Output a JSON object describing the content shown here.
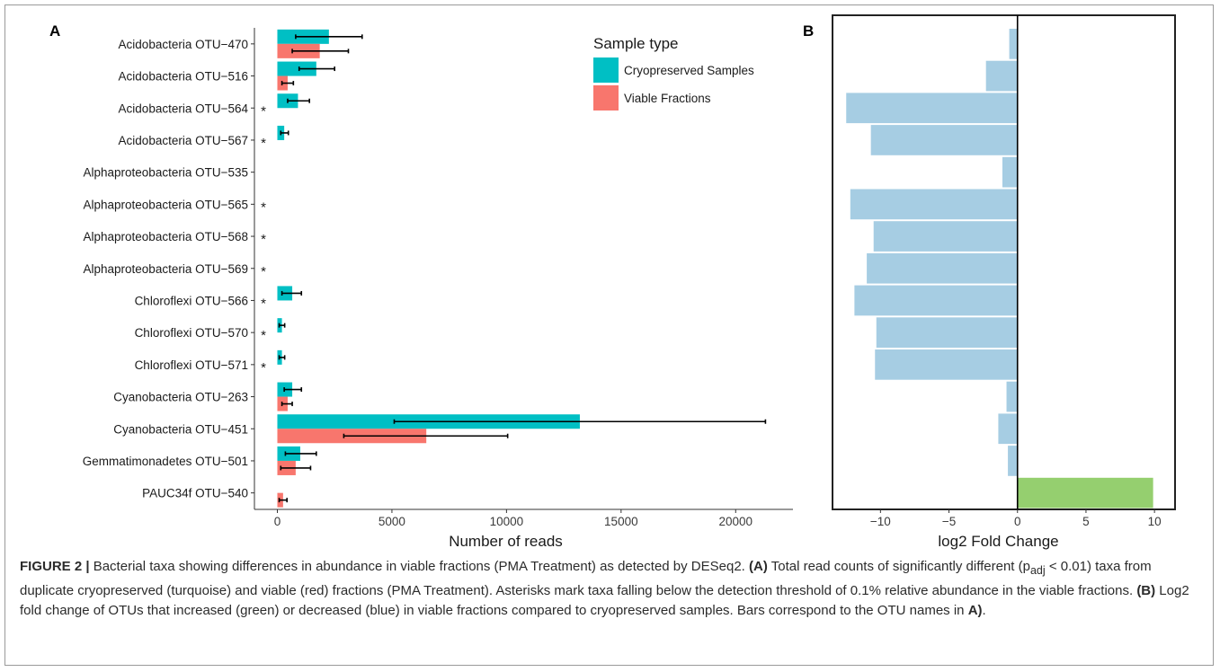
{
  "figure": {
    "caption": {
      "label": "FIGURE 2 |",
      "p1": " Bacterial taxa showing differences in abundance in viable fractions (PMA Treatment) as detected by DESeq2. ",
      "a_ref": "(A)",
      "p2": " Total read counts of significantly different (p",
      "p_sub": "adj",
      "p3": " < 0.01) taxa from duplicate cryopreserved (turquoise) and viable (red) fractions (PMA Treatment). Asterisks mark taxa falling below the detection threshold of 0.1% relative abundance in the viable fractions. ",
      "b_ref": "(B)",
      "p4": " Log2 fold change of OTUs that increased (green) or decreased (blue) in viable fractions compared to cryopreserved samples. Bars correspond to the OTU names in ",
      "a_end": "A)",
      "p5": "."
    }
  },
  "chart_data": [
    {
      "panel": "A",
      "type": "bar",
      "orientation": "horizontal",
      "categories": [
        "Acidobacteria OTU−470",
        "Acidobacteria OTU−516",
        "Acidobacteria OTU−564",
        "Acidobacteria OTU−567",
        "Alphaproteobacteria OTU−535",
        "Alphaproteobacteria OTU−565",
        "Alphaproteobacteria OTU−568",
        "Alphaproteobacteria OTU−569",
        "Chloroflexi OTU−566",
        "Chloroflexi OTU−570",
        "Chloroflexi OTU−571",
        "Cyanobacteria OTU−263",
        "Cyanobacteria OTU−451",
        "Gemmatimonadetes OTU−501",
        "PAUC34f OTU−540"
      ],
      "asterisk": [
        false,
        false,
        true,
        true,
        false,
        true,
        true,
        true,
        true,
        true,
        true,
        false,
        false,
        false,
        false
      ],
      "asterisk_symbol": "*",
      "series": [
        {
          "name": "Cryopreserved Samples",
          "color": "#00BFC4",
          "values": [
            2250,
            1700,
            900,
            300,
            0,
            0,
            0,
            0,
            650,
            200,
            200,
            650,
            13200,
            1000,
            0
          ],
          "err_low": [
            800,
            950,
            450,
            150,
            0,
            0,
            0,
            0,
            200,
            80,
            80,
            300,
            5100,
            350,
            0
          ],
          "err_high": [
            3700,
            2500,
            1400,
            480,
            0,
            0,
            0,
            0,
            1050,
            320,
            320,
            1050,
            21300,
            1700,
            0
          ]
        },
        {
          "name": "Viable Fractions",
          "color": "#F8766D",
          "values": [
            1850,
            450,
            0,
            0,
            0,
            0,
            0,
            0,
            0,
            0,
            0,
            450,
            6500,
            800,
            250
          ],
          "err_low": [
            650,
            200,
            0,
            0,
            0,
            0,
            0,
            0,
            0,
            0,
            0,
            200,
            2900,
            150,
            80
          ],
          "err_high": [
            3100,
            700,
            0,
            0,
            0,
            0,
            0,
            0,
            0,
            0,
            0,
            650,
            10050,
            1450,
            420
          ]
        }
      ],
      "xlabel": "Number of reads",
      "xlim": [
        -1000,
        22500
      ],
      "xticks": [
        0,
        5000,
        10000,
        15000,
        20000
      ],
      "legend": {
        "title": "Sample type",
        "position": "top-right"
      },
      "grid": false
    },
    {
      "panel": "B",
      "type": "bar",
      "orientation": "horizontal",
      "values": [
        -0.6,
        -2.3,
        -12.5,
        -10.7,
        -1.1,
        -12.2,
        -10.5,
        -11.0,
        -11.9,
        -10.3,
        -10.4,
        -0.8,
        -1.4,
        -0.7,
        9.9
      ],
      "colors": {
        "decreased": "#A6CDE3",
        "increased": "#95CF6F"
      },
      "xlabel": "log2 Fold Change",
      "xlim": [
        -13.5,
        11.5
      ],
      "xticks": [
        -10,
        -5,
        0,
        5,
        10
      ],
      "xtick_labels": [
        "−10",
        "−5",
        "0",
        "5",
        "10"
      ],
      "grid": false
    }
  ]
}
